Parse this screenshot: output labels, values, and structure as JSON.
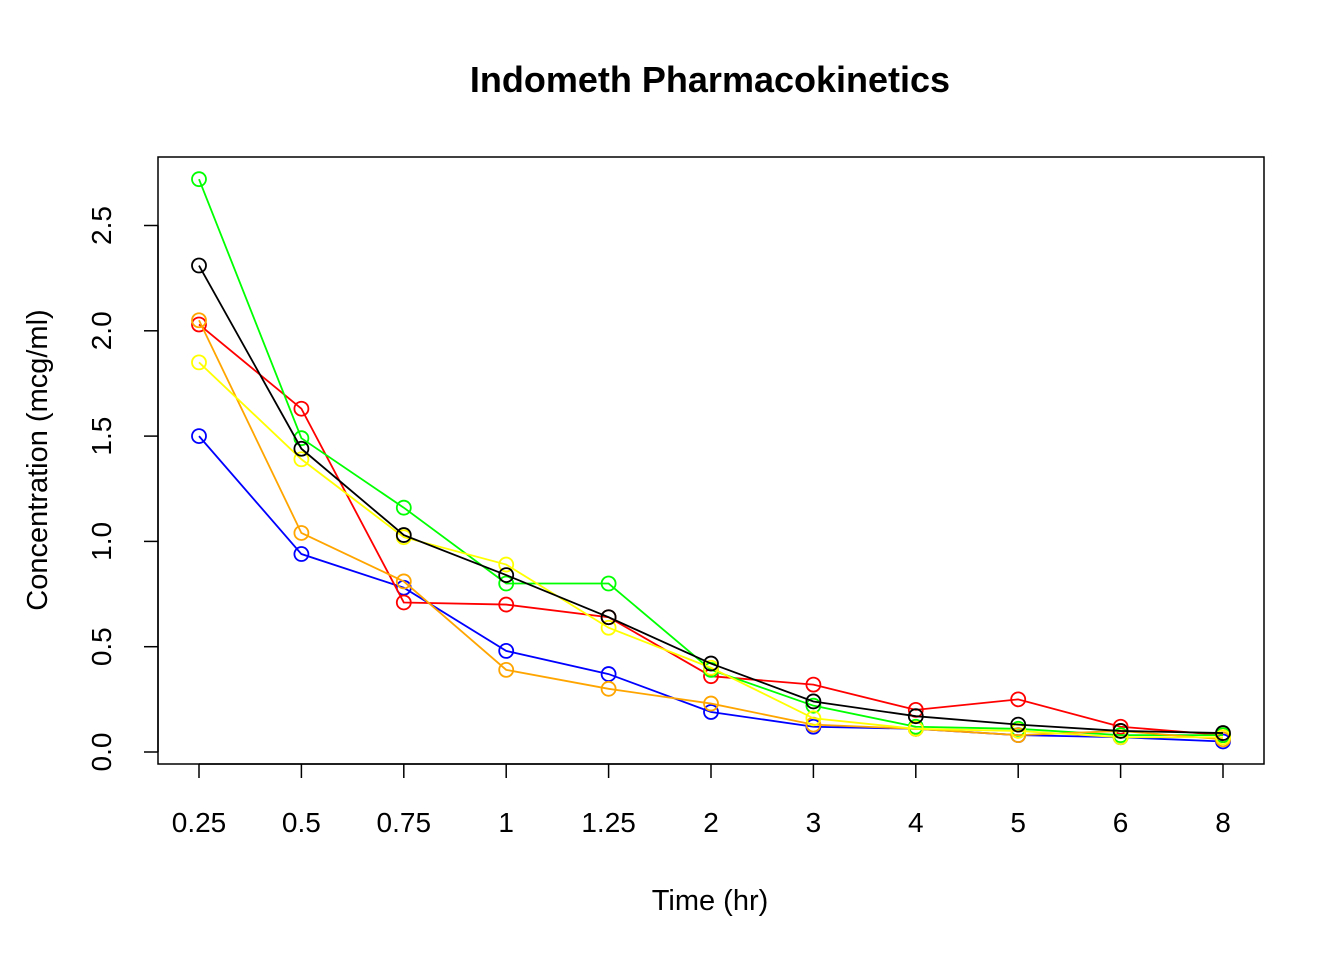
{
  "chart_data": {
    "type": "line",
    "title": "Indometh Pharmacokinetics",
    "xlabel": "Time (hr)",
    "ylabel": "Concentration (mcg/ml)",
    "categories": [
      "0.25",
      "0.5",
      "0.75",
      "1",
      "1.25",
      "2",
      "3",
      "4",
      "5",
      "6",
      "8"
    ],
    "yticks": [
      "0.0",
      "0.5",
      "1.0",
      "1.5",
      "2.0",
      "2.5"
    ],
    "ylim": [
      0,
      2.72
    ],
    "grid": false,
    "marker": "open-circle",
    "series": [
      {
        "color": "#0000ff",
        "values": [
          1.5,
          0.94,
          0.78,
          0.48,
          0.37,
          0.19,
          0.12,
          0.11,
          0.08,
          0.07,
          0.05
        ]
      },
      {
        "color": "#ff0000",
        "values": [
          2.03,
          1.63,
          0.71,
          0.7,
          0.64,
          0.36,
          0.32,
          0.2,
          0.25,
          0.12,
          0.08
        ]
      },
      {
        "color": "#00ff00",
        "values": [
          2.72,
          1.49,
          1.16,
          0.8,
          0.8,
          0.39,
          0.22,
          0.12,
          0.11,
          0.08,
          0.08
        ]
      },
      {
        "color": "#ffa500",
        "values": [
          2.05,
          1.04,
          0.81,
          0.39,
          0.3,
          0.23,
          0.13,
          0.11,
          0.08,
          0.1,
          0.06
        ]
      },
      {
        "color": "#ffff00",
        "values": [
          1.85,
          1.39,
          1.02,
          0.89,
          0.59,
          0.4,
          0.16,
          0.11,
          0.1,
          0.07,
          0.07
        ]
      },
      {
        "color": "#000000",
        "values": [
          2.31,
          1.44,
          1.03,
          0.84,
          0.64,
          0.42,
          0.24,
          0.17,
          0.13,
          0.1,
          0.09
        ]
      }
    ]
  }
}
